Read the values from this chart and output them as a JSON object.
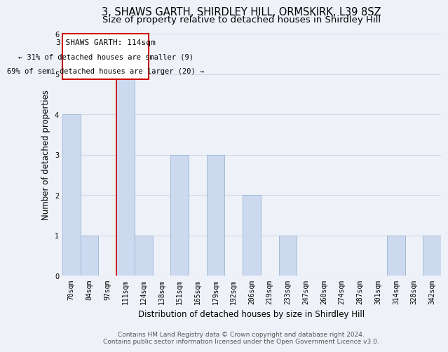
{
  "title": "3, SHAWS GARTH, SHIRDLEY HILL, ORMSKIRK, L39 8SZ",
  "subtitle": "Size of property relative to detached houses in Shirdley Hill",
  "xlabel": "Distribution of detached houses by size in Shirdley Hill",
  "ylabel": "Number of detached properties",
  "categories": [
    "70sqm",
    "84sqm",
    "97sqm",
    "111sqm",
    "124sqm",
    "138sqm",
    "151sqm",
    "165sqm",
    "179sqm",
    "192sqm",
    "206sqm",
    "219sqm",
    "233sqm",
    "247sqm",
    "260sqm",
    "274sqm",
    "287sqm",
    "301sqm",
    "314sqm",
    "328sqm",
    "342sqm"
  ],
  "values": [
    4,
    1,
    0,
    5,
    1,
    0,
    3,
    0,
    3,
    0,
    2,
    0,
    1,
    0,
    0,
    0,
    0,
    0,
    1,
    0,
    1
  ],
  "bar_color": "#ccd9ee",
  "bar_edge_color": "#99b3d4",
  "highlight_index": 3,
  "highlight_line_color": "#cc0000",
  "ylim": [
    0,
    6
  ],
  "yticks": [
    0,
    1,
    2,
    3,
    4,
    5,
    6
  ],
  "annotation_title": "3 SHAWS GARTH: 114sqm",
  "annotation_line1": "← 31% of detached houses are smaller (9)",
  "annotation_line2": "69% of semi-detached houses are larger (20) →",
  "annotation_box_color": "#ffffff",
  "annotation_box_edge": "#cc0000",
  "footer_line1": "Contains HM Land Registry data © Crown copyright and database right 2024.",
  "footer_line2": "Contains public sector information licensed under the Open Government Licence v3.0.",
  "bg_color": "#eef2f8",
  "grid_color": "#d0d8e8",
  "title_fontsize": 10.5,
  "subtitle_fontsize": 9.5,
  "axis_label_fontsize": 8.5,
  "ylabel_fontsize": 8.5,
  "tick_fontsize": 7,
  "footer_fontsize": 6.5,
  "ann_title_fontsize": 8,
  "ann_text_fontsize": 7.5
}
